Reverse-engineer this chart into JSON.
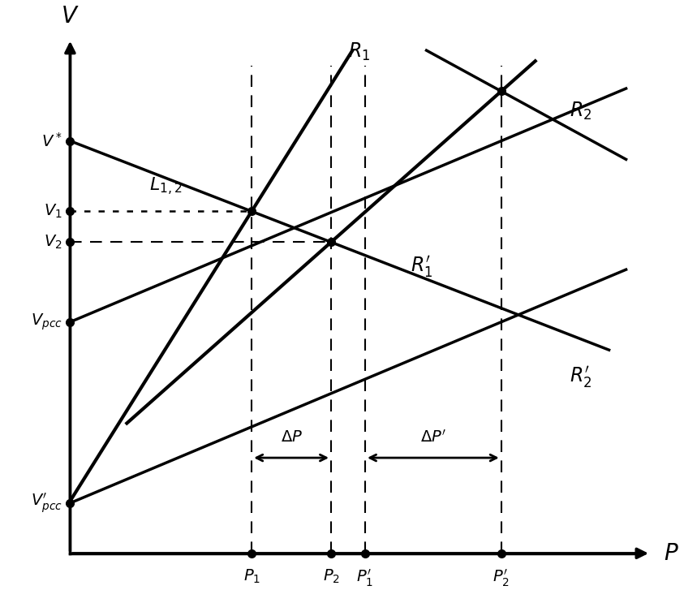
{
  "figsize": [
    8.43,
    7.43
  ],
  "dpi": 100,
  "background": "#ffffff",
  "axis_lw": 2.5,
  "line_lw": 2.5,
  "dashed_lw": 1.5,
  "P1": 0.32,
  "P2": 0.46,
  "P1p": 0.52,
  "P2p": 0.76,
  "Vstar": 0.82,
  "V1": 0.68,
  "V2": 0.62,
  "Vpcc": 0.46,
  "Vpcc_prime": 0.1
}
